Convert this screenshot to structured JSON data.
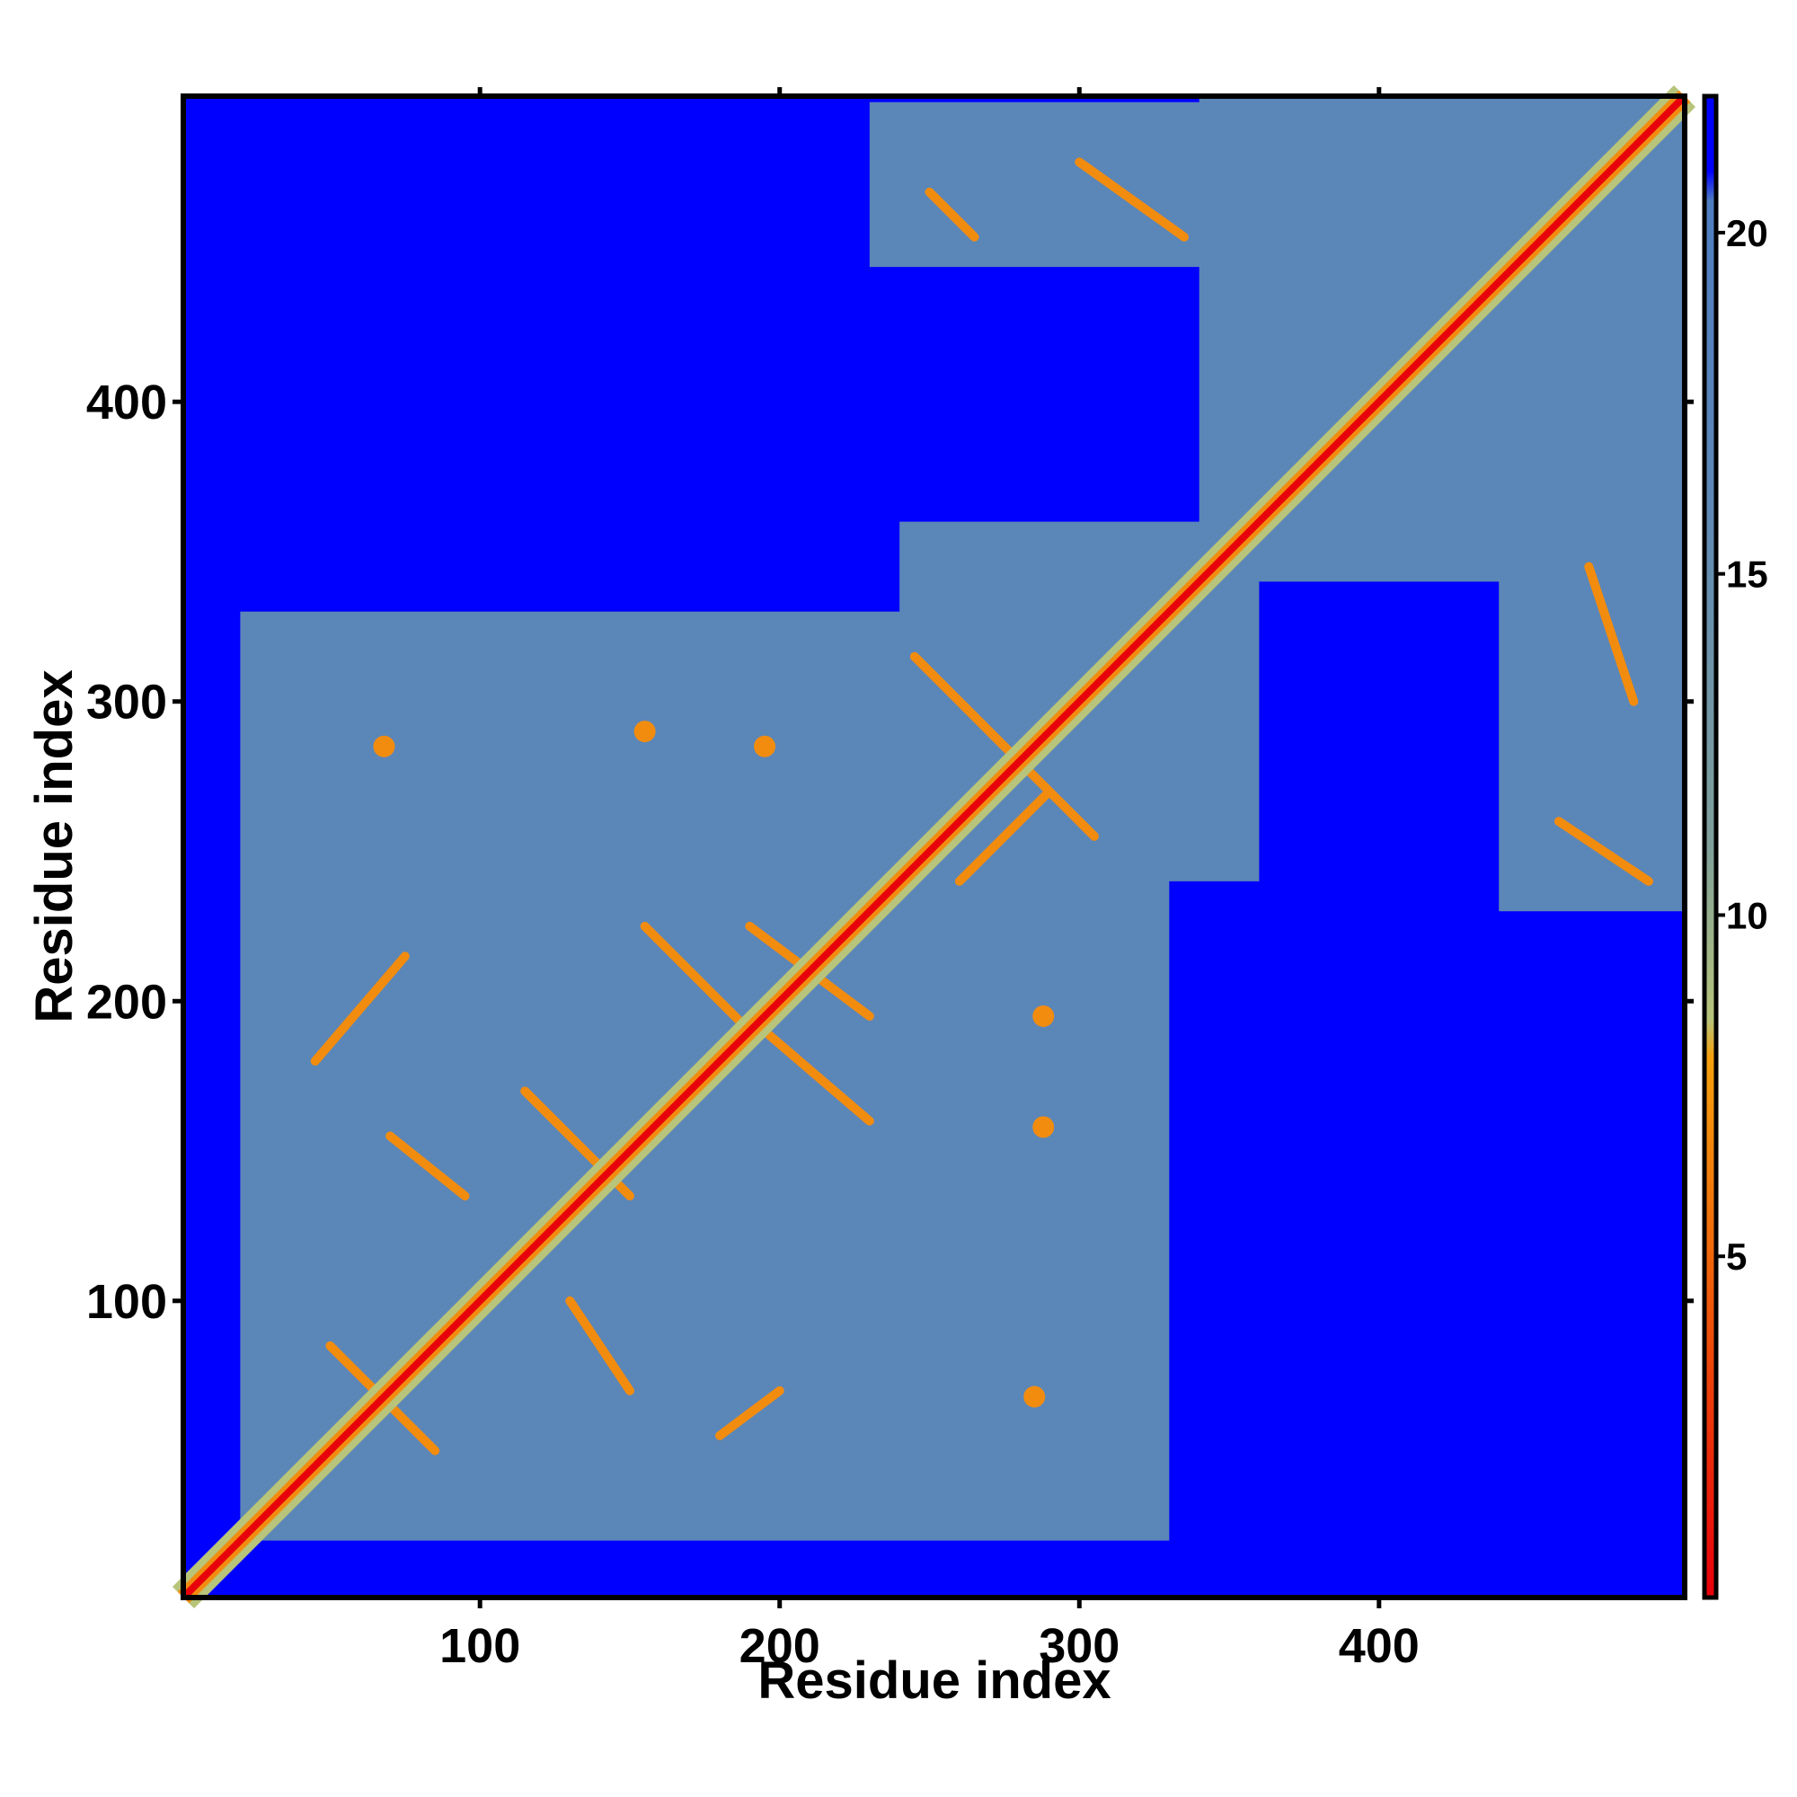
{
  "chart_data": {
    "type": "heatmap",
    "title": "",
    "xlabel": "Residue index",
    "ylabel": "Residue index",
    "xlim": [
      1,
      502
    ],
    "ylim": [
      1,
      502
    ],
    "x_ticks": [
      100,
      200,
      300,
      400
    ],
    "y_ticks": [
      100,
      200,
      300,
      400
    ],
    "x_tick_labels": [
      "100",
      "200",
      "300",
      "400"
    ],
    "y_tick_labels": [
      "100",
      "200",
      "300",
      "400"
    ],
    "grid": false,
    "symmetric": true,
    "diagonal_value": 0,
    "background_value": 22,
    "colorbar": {
      "position": "right",
      "range": [
        0,
        22
      ],
      "ticks": [
        5,
        10,
        15,
        20
      ],
      "tick_labels": [
        "5",
        "10",
        "15",
        "20"
      ],
      "colors": {
        "low": "#e8000b",
        "mid_low": "#f28c0f",
        "mid": "#b7c47a",
        "high": "#5b86b8",
        "max": "#0000ff"
      }
    },
    "contact_blocks": [
      {
        "residues_x": [
          20,
          330
        ],
        "residues_y": [
          20,
          330
        ],
        "value": 17
      },
      {
        "residues_x": [
          240,
          360
        ],
        "residues_y": [
          240,
          360
        ],
        "value": 17
      },
      {
        "residues_x": [
          230,
          350
        ],
        "residues_y": [
          445,
          500
        ],
        "value": 17
      },
      {
        "residues_x": [
          440,
          502
        ],
        "residues_y": [
          230,
          350
        ],
        "value": 17
      },
      {
        "residues_x": [
          340,
          502
        ],
        "residues_y": [
          340,
          502
        ],
        "value": 17
      }
    ],
    "contact_lines": [
      {
        "from": [
          45,
          180
        ],
        "to": [
          75,
          215
        ],
        "value": 4
      },
      {
        "from": [
          50,
          85
        ],
        "to": [
          85,
          50
        ],
        "value": 4
      },
      {
        "from": [
          70,
          155
        ],
        "to": [
          95,
          135
        ],
        "value": 5
      },
      {
        "from": [
          115,
          170
        ],
        "to": [
          150,
          135
        ],
        "value": 5
      },
      {
        "from": [
          130,
          100
        ],
        "to": [
          150,
          70
        ],
        "value": 5
      },
      {
        "from": [
          155,
          225
        ],
        "to": [
          190,
          190
        ],
        "value": 5
      },
      {
        "from": [
          190,
          225
        ],
        "to": [
          230,
          195
        ],
        "value": 5
      },
      {
        "from": [
          180,
          55
        ],
        "to": [
          200,
          70
        ],
        "value": 5
      },
      {
        "from": [
          195,
          190
        ],
        "to": [
          230,
          160
        ],
        "value": 5
      },
      {
        "from": [
          245,
          315
        ],
        "to": [
          305,
          255
        ],
        "value": 6
      },
      {
        "from": [
          260,
          240
        ],
        "to": [
          290,
          270
        ],
        "value": 6
      },
      {
        "from": [
          250,
          470
        ],
        "to": [
          265,
          455
        ],
        "value": 6
      },
      {
        "from": [
          300,
          480
        ],
        "to": [
          335,
          455
        ],
        "value": 6
      },
      {
        "from": [
          470,
          345
        ],
        "to": [
          485,
          300
        ],
        "value": 6
      },
      {
        "from": [
          460,
          260
        ],
        "to": [
          490,
          240
        ],
        "value": 6
      }
    ],
    "contact_spots": [
      {
        "x": 68,
        "y": 285,
        "value": 4
      },
      {
        "x": 155,
        "y": 290,
        "value": 4
      },
      {
        "x": 195,
        "y": 285,
        "value": 4
      },
      {
        "x": 288,
        "y": 195,
        "value": 4
      },
      {
        "x": 288,
        "y": 158,
        "value": 4
      },
      {
        "x": 285,
        "y": 68,
        "value": 4
      }
    ]
  }
}
